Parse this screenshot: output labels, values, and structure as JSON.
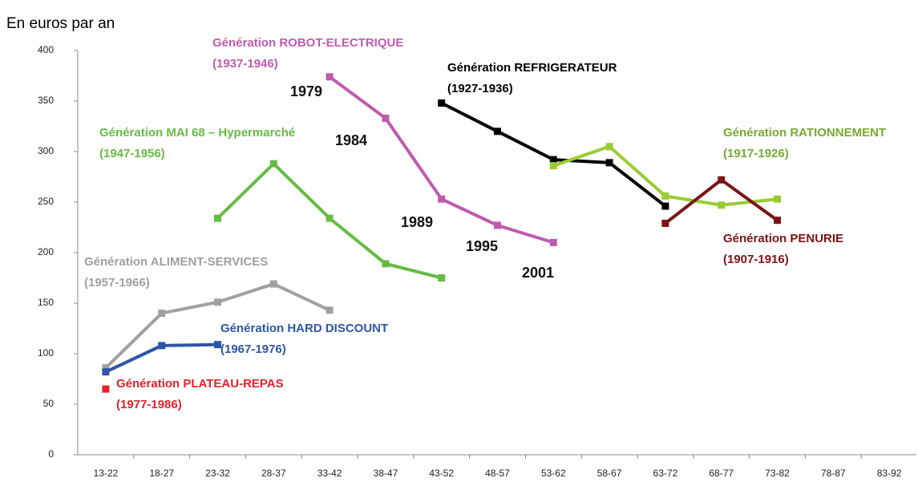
{
  "chart_data": {
    "type": "line",
    "y_label": "En euros par an",
    "categories": [
      "13-22",
      "18-27",
      "23-32",
      "28-37",
      "33-42",
      "38-47",
      "43-52",
      "48-57",
      "53-62",
      "58-67",
      "63-72",
      "68-77",
      "73-82",
      "78-87",
      "83-92"
    ],
    "ylim": [
      0,
      400
    ],
    "yticks": [
      0,
      50,
      100,
      150,
      200,
      250,
      300,
      350,
      400
    ],
    "series": [
      {
        "name": "Génération ALIMENT-SERVICES",
        "years": "(1957-1966)",
        "color": "#a0a0a0",
        "values": [
          86,
          140,
          151,
          169,
          143,
          null,
          null,
          null,
          null,
          null,
          null,
          null,
          null,
          null,
          null
        ]
      },
      {
        "name": "Génération HARD DISCOUNT",
        "years": "(1967-1976)",
        "color": "#2e56a6",
        "values": [
          82,
          108,
          109,
          null,
          null,
          null,
          null,
          null,
          null,
          null,
          null,
          null,
          null,
          null,
          null
        ]
      },
      {
        "name": "Génération PLATEAU-REPAS",
        "years": "(1977-1986)",
        "color": "#e8202a",
        "values": [
          65,
          null,
          null,
          null,
          null,
          null,
          null,
          null,
          null,
          null,
          null,
          null,
          null,
          null,
          null
        ]
      },
      {
        "name": "Génération MAI 68 – Hypermarché",
        "years": "(1947-1956)",
        "color": "#66bb44",
        "values": [
          null,
          null,
          234,
          288,
          234,
          189,
          175,
          null,
          null,
          null,
          null,
          null,
          null,
          null,
          null
        ]
      },
      {
        "name": "Génération ROBOT-ELECTRIQUE",
        "years": "(1937-1946)",
        "color": "#c05ab0",
        "values": [
          null,
          null,
          null,
          null,
          374,
          333,
          253,
          227,
          210,
          null,
          null,
          null,
          null,
          null,
          null
        ]
      },
      {
        "name": "Génération REFRIGERATEUR",
        "years": "(1927-1936)",
        "color": "#000000",
        "values": [
          null,
          null,
          null,
          null,
          null,
          null,
          348,
          320,
          292,
          289,
          246,
          null,
          null,
          null,
          null
        ]
      },
      {
        "name": "Génération RATIONNEMENT",
        "years": "(1917-1926)",
        "color": "#99cc33",
        "values": [
          null,
          null,
          null,
          null,
          null,
          null,
          null,
          null,
          286,
          305,
          256,
          247,
          253,
          null,
          null
        ]
      },
      {
        "name": "Génération PENURIE",
        "years": "(1907-1916)",
        "color": "#7b1416",
        "values": [
          null,
          null,
          null,
          null,
          null,
          null,
          null,
          null,
          null,
          null,
          229,
          272,
          232,
          null,
          null
        ]
      }
    ],
    "annotations": [
      "1979",
      "1984",
      "1989",
      "1995",
      "2001"
    ]
  }
}
